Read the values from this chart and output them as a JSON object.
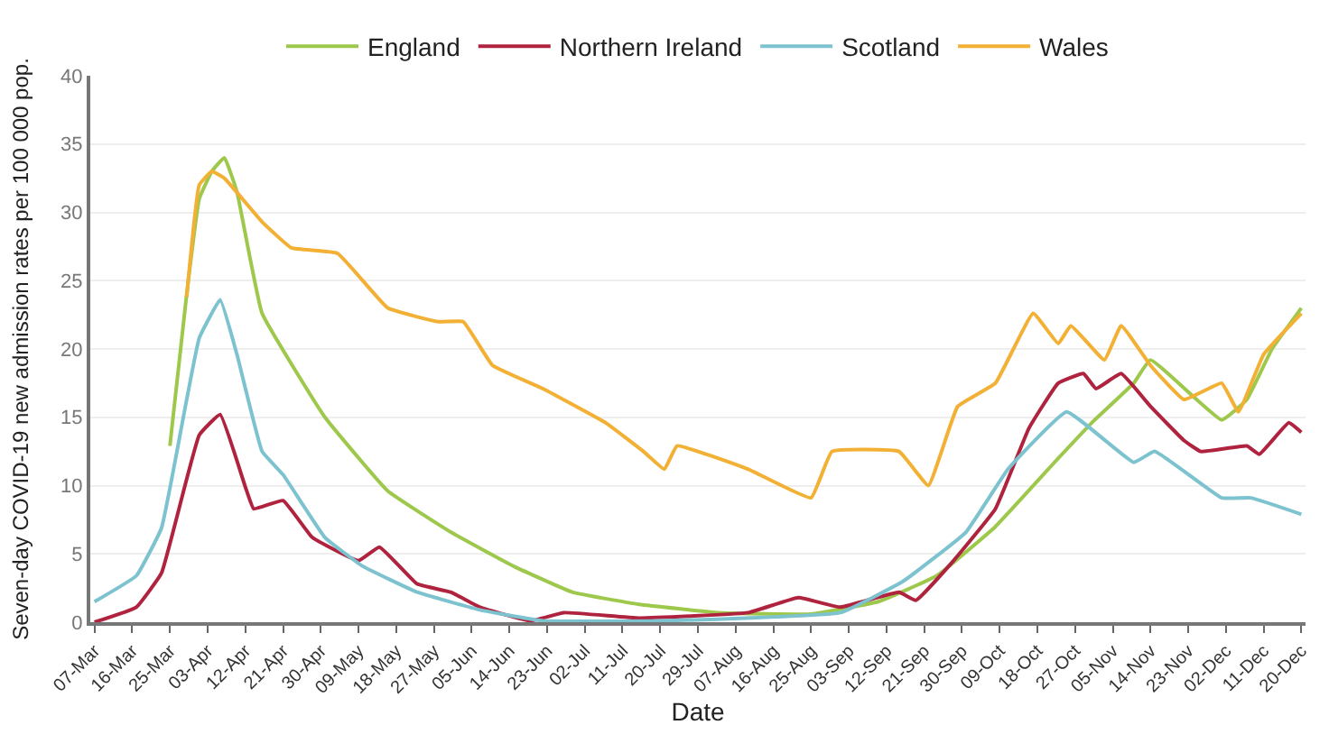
{
  "chart_data": {
    "type": "line",
    "xlabel": "Date",
    "ylabel": "Seven-day COVID-19 new admission rates per 100 000 pop.",
    "xlim": [
      "--03-06",
      "--12-21"
    ],
    "ylim": [
      0,
      40
    ],
    "yticks": [
      0,
      5,
      10,
      15,
      20,
      25,
      30,
      35,
      40
    ],
    "xticks": [
      {
        "value": "--03-07",
        "label": "07-Mar"
      },
      {
        "value": "--03-16",
        "label": "16-Mar"
      },
      {
        "value": "--03-25",
        "label": "25-Mar"
      },
      {
        "value": "--04-03",
        "label": "03-Apr"
      },
      {
        "value": "--04-12",
        "label": "12-Apr"
      },
      {
        "value": "--04-21",
        "label": "21-Apr"
      },
      {
        "value": "--04-30",
        "label": "30-Apr"
      },
      {
        "value": "--05-09",
        "label": "09-May"
      },
      {
        "value": "--05-18",
        "label": "18-May"
      },
      {
        "value": "--05-27",
        "label": "27-May"
      },
      {
        "value": "--06-05",
        "label": "05-Jun"
      },
      {
        "value": "--06-14",
        "label": "14-Jun"
      },
      {
        "value": "--06-23",
        "label": "23-Jun"
      },
      {
        "value": "--07-02",
        "label": "02-Jul"
      },
      {
        "value": "--07-11",
        "label": "11-Jul"
      },
      {
        "value": "--07-20",
        "label": "20-Jul"
      },
      {
        "value": "--07-29",
        "label": "29-Jul"
      },
      {
        "value": "--08-07",
        "label": "07-Aug"
      },
      {
        "value": "--08-16",
        "label": "16-Aug"
      },
      {
        "value": "--08-25",
        "label": "25-Aug"
      },
      {
        "value": "--09-03",
        "label": "03-Sep"
      },
      {
        "value": "--09-12",
        "label": "12-Sep"
      },
      {
        "value": "--09-21",
        "label": "21-Sep"
      },
      {
        "value": "--09-30",
        "label": "30-Sep"
      },
      {
        "value": "--10-09",
        "label": "09-Oct"
      },
      {
        "value": "--10-18",
        "label": "18-Oct"
      },
      {
        "value": "--10-27",
        "label": "27-Oct"
      },
      {
        "value": "--11-05",
        "label": "05-Nov"
      },
      {
        "value": "--11-14",
        "label": "14-Nov"
      },
      {
        "value": "--11-23",
        "label": "23-Nov"
      },
      {
        "value": "--12-02",
        "label": "02-Dec"
      },
      {
        "value": "--12-11",
        "label": "11-Dec"
      },
      {
        "value": "--12-20",
        "label": "20-Dec"
      }
    ],
    "grid": "y",
    "legend": "top",
    "marker": "none",
    "line_style": "solid",
    "series": [
      {
        "name": "England",
        "color": "#9dc84b",
        "x": [
          "--03-25",
          "--03-29",
          "--04-01",
          "--04-04",
          "--04-07",
          "--04-10",
          "--04-16",
          "--05-01",
          "--05-16",
          "--05-31",
          "--06-15",
          "--06-29",
          "--07-15",
          "--08-03",
          "--08-25",
          "--09-10",
          "--09-24",
          "--10-08",
          "--10-23",
          "--10-31",
          "--11-10",
          "--11-14",
          "--12-01",
          "--12-07",
          "--12-13",
          "--12-20"
        ],
        "values": [
          12.9,
          24,
          31,
          33,
          34,
          31.5,
          22.6,
          15,
          9.6,
          6.6,
          4.1,
          2.2,
          1.3,
          0.7,
          0.6,
          1.5,
          3.4,
          7,
          12,
          14.6,
          17.5,
          19.2,
          14.8,
          16.3,
          20,
          23
        ]
      },
      {
        "name": "Northern Ireland",
        "color": "#b0233f",
        "x": [
          "--03-07",
          "--03-17",
          "--03-23",
          "--04-01",
          "--04-06",
          "--04-12",
          "--04-14",
          "--04-21",
          "--04-28",
          "--05-09",
          "--05-14",
          "--05-23",
          "--05-31",
          "--06-07",
          "--06-19",
          "--06-27",
          "--07-15",
          "--08-10",
          "--08-22",
          "--09-01",
          "--09-15",
          "--09-19",
          "--09-28",
          "--10-08",
          "--10-16",
          "--10-23",
          "--10-29",
          "--11-01",
          "--11-07",
          "--11-14",
          "--11-22",
          "--11-26",
          "--12-07",
          "--12-10",
          "--12-17",
          "--12-20"
        ],
        "values": [
          0,
          1.1,
          3.6,
          13.7,
          15.2,
          9.9,
          8.3,
          8.9,
          6.2,
          4.5,
          5.5,
          2.8,
          2.2,
          1.1,
          0.1,
          0.7,
          0.3,
          0.7,
          1.8,
          1.1,
          2.2,
          1.6,
          4.5,
          8.3,
          14.2,
          17.5,
          18.2,
          17.1,
          18.2,
          15.8,
          13.3,
          12.5,
          12.9,
          12.3,
          14.6,
          13.9
        ]
      },
      {
        "name": "Scotland",
        "color": "#7cc3cf",
        "x": [
          "--03-07",
          "--03-17",
          "--03-23",
          "--03-29",
          "--04-01",
          "--04-06",
          "--04-10",
          "--04-16",
          "--04-21",
          "--05-01",
          "--05-10",
          "--05-23",
          "--06-07",
          "--06-22",
          "--07-20",
          "--09-01",
          "--09-16",
          "--10-01",
          "--10-11",
          "--10-25",
          "--11-10",
          "--11-15",
          "--12-01",
          "--12-08",
          "--12-20"
        ],
        "values": [
          1.5,
          3.4,
          6.9,
          16.3,
          20.8,
          23.6,
          19.6,
          12.5,
          10.8,
          6.2,
          4.1,
          2.2,
          0.9,
          0.1,
          0.1,
          0.7,
          3,
          6.6,
          11.2,
          15.4,
          11.7,
          12.5,
          9.1,
          9.1,
          7.9
        ]
      },
      {
        "name": "Wales",
        "color": "#f2b035",
        "x": [
          "--03-29",
          "--04-01",
          "--04-04",
          "--04-07",
          "--04-16",
          "--04-23",
          "--05-04",
          "--05-16",
          "--05-28",
          "--06-03",
          "--06-10",
          "--06-22",
          "--07-07",
          "--07-16",
          "--07-21",
          "--07-24",
          "--08-10",
          "--08-25",
          "--08-30",
          "--09-15",
          "--09-22",
          "--09-29",
          "--10-08",
          "--10-17",
          "--10-23",
          "--10-26",
          "--11-03",
          "--11-07",
          "--11-14",
          "--11-22",
          "--12-01",
          "--12-05",
          "--12-11",
          "--12-20"
        ],
        "values": [
          23.8,
          32,
          33,
          32.5,
          29.3,
          27.4,
          27,
          23,
          22,
          22,
          18.8,
          17.1,
          14.6,
          12.5,
          11.2,
          12.9,
          11.2,
          9.1,
          12.5,
          12.5,
          10,
          15.8,
          17.5,
          22.6,
          20.4,
          21.7,
          19.2,
          21.7,
          18.8,
          16.3,
          17.5,
          15.4,
          19.6,
          22.6
        ]
      }
    ]
  }
}
